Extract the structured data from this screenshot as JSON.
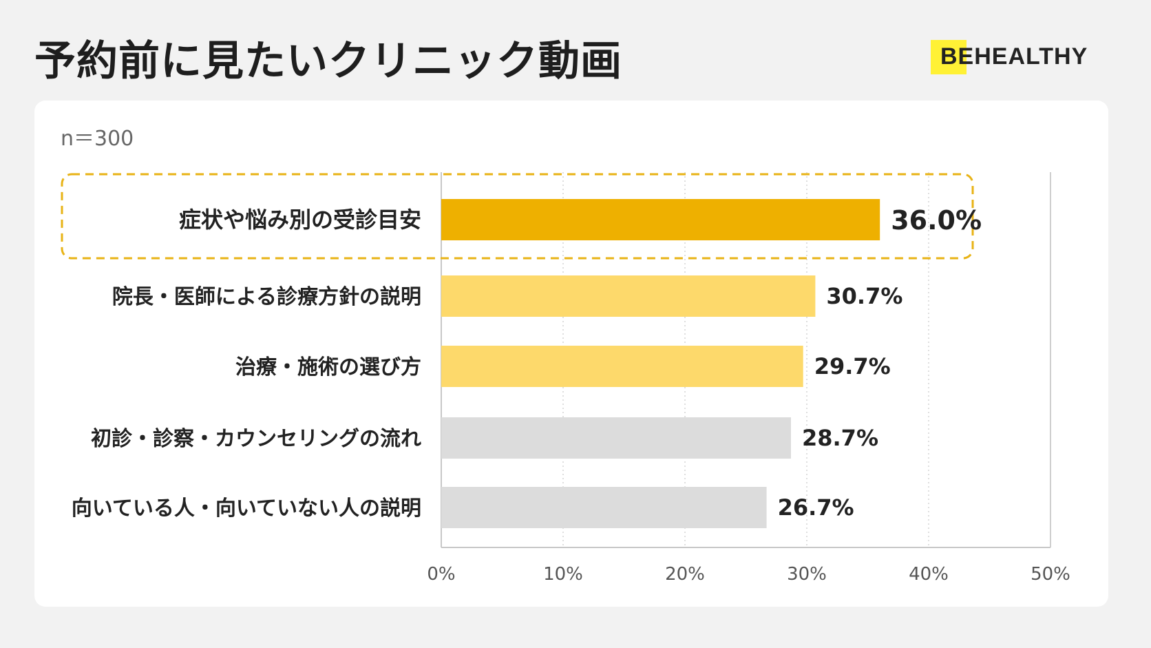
{
  "header": {
    "title": "予約前に見たいクリニック動画",
    "brand": "BEHEALTHY"
  },
  "colors": {
    "highlight": "#eeb000",
    "secondary": "#fdd96b",
    "neutral": "#dcdcdc",
    "outline": "#e8b316"
  },
  "chart_data": {
    "type": "bar",
    "orientation": "horizontal",
    "sample_size": "n＝300",
    "categories": [
      "症状や悩み別の受診目安",
      "院長・医師による診療方針の説明",
      "治療・施術の選び方",
      "初診・診察・カウンセリングの流れ",
      "向いている人・向いていない人の説明"
    ],
    "values": [
      36.0,
      30.7,
      29.7,
      28.7,
      26.7
    ],
    "value_labels": [
      "36.0%",
      "30.7%",
      "29.7%",
      "28.7%",
      "26.7%"
    ],
    "bar_colors": [
      "highlight",
      "secondary",
      "secondary",
      "neutral",
      "neutral"
    ],
    "highlighted_index": 0,
    "xlim": [
      0,
      50
    ],
    "x_ticks": [
      0,
      10,
      20,
      30,
      40,
      50
    ],
    "x_tick_labels": [
      "0%",
      "10%",
      "20%",
      "30%",
      "40%",
      "50%"
    ],
    "grid": "vertical dotted"
  }
}
